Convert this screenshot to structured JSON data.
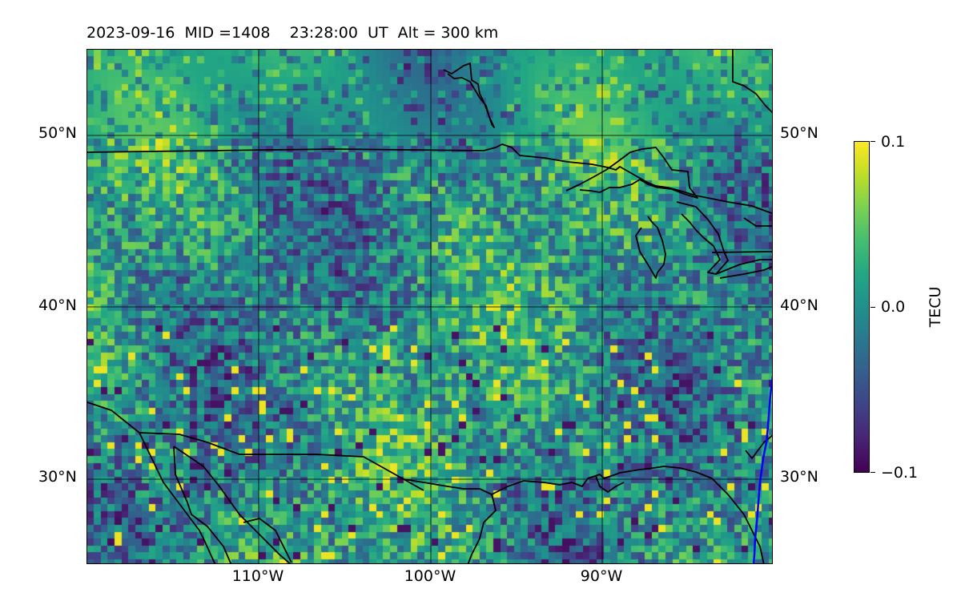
{
  "title": {
    "date": "2023-09-16",
    "mid": "MID =1408",
    "time": "23:28:00  UT",
    "alt": "Alt = 300 km"
  },
  "map": {
    "lat_labels": [
      "50°N",
      "40°N",
      "30°N"
    ],
    "lon_labels": [
      "110°W",
      "100°W",
      "90°W"
    ],
    "field": "TEC perturbation (detrended)",
    "colormap": "viridis"
  },
  "colorbar": {
    "label": "TECU",
    "ticks": [
      "0.1",
      "0.0",
      "−0.1"
    ],
    "min": -0.1,
    "max": 0.1
  },
  "colors": {
    "coastline": "#000000",
    "terminator": "#0000ff",
    "grid": "#000000"
  }
}
